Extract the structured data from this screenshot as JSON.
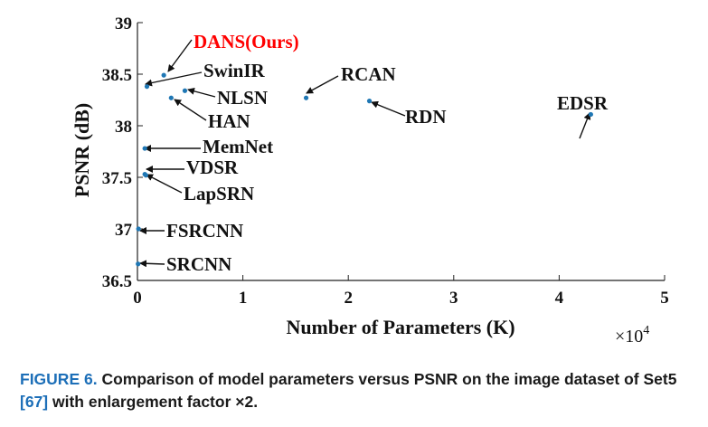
{
  "chart_data": {
    "type": "scatter",
    "xlabel": "Number of Parameters (K)",
    "ylabel": "PSNR (dB)",
    "xlim": [
      0,
      5
    ],
    "ylim": [
      36.5,
      39
    ],
    "x_ticks": [
      0,
      1,
      2,
      3,
      4,
      5
    ],
    "y_ticks": [
      36.5,
      37,
      37.5,
      38,
      38.5,
      39
    ],
    "x_multiplier": "×10",
    "x_multiplier_exp": "4",
    "grid": false,
    "point_color": "#1f77b4",
    "highlight_color": "#ff0000",
    "points": [
      {
        "name": "DANS(Ours)",
        "x": 0.25,
        "y": 38.49,
        "highlight": true
      },
      {
        "name": "SwinIR",
        "x": 0.09,
        "y": 38.38
      },
      {
        "name": "NLSN",
        "x": 0.45,
        "y": 38.34
      },
      {
        "name": "HAN",
        "x": 0.32,
        "y": 38.27
      },
      {
        "name": "RCAN",
        "x": 1.6,
        "y": 38.27
      },
      {
        "name": "RDN",
        "x": 2.2,
        "y": 38.24
      },
      {
        "name": "EDSR",
        "x": 4.3,
        "y": 38.11
      },
      {
        "name": "MemNet",
        "x": 0.07,
        "y": 37.78
      },
      {
        "name": "VDSR",
        "x": 0.07,
        "y": 37.53
      },
      {
        "name": "LapSRN",
        "x": 0.08,
        "y": 37.52
      },
      {
        "name": "FSRCNN",
        "x": 0.01,
        "y": 37.0
      },
      {
        "name": "SRCNN",
        "x": 0.006,
        "y": 36.66
      }
    ]
  },
  "caption": {
    "label": "FIGURE 6.",
    "text_before_ref": "Comparison of model parameters versus PSNR on the image dataset of Set5 ",
    "ref": "[67]",
    "text_after_ref": " with enlargement factor ×2."
  }
}
